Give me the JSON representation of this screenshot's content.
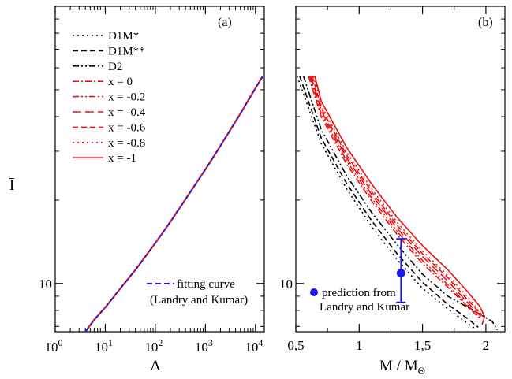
{
  "colors": {
    "black": "#000000",
    "red": "#ee1111",
    "blue": "#1a1aee"
  },
  "chart_data": [
    {
      "type": "line",
      "panel_label": "(a)",
      "xlabel": "Λ",
      "ylabel": "Ī",
      "x_scale": "log",
      "y_scale": "log",
      "xlim": [
        1,
        15000
      ],
      "ylim": [
        6.7,
        100
      ],
      "x_ticks": [
        {
          "value": 1,
          "base": "10",
          "exp": "0"
        },
        {
          "value": 10,
          "base": "10",
          "exp": "1"
        },
        {
          "value": 100,
          "base": "10",
          "exp": "2"
        },
        {
          "value": 1000,
          "base": "10",
          "exp": "3"
        },
        {
          "value": 10000,
          "base": "10",
          "exp": "4"
        }
      ],
      "y_ticks": [
        {
          "value": 10,
          "label": "10"
        }
      ],
      "legend": [
        {
          "label": "D1M*",
          "style": "dotted",
          "color": "#000000"
        },
        {
          "label": "D1M**",
          "style": "dashed",
          "color": "#000000"
        },
        {
          "label": "D2",
          "style": "dashdotdot",
          "color": "#000000"
        },
        {
          "label": "x = 0",
          "style": "dashdot",
          "color": "#ee1111"
        },
        {
          "label": "x = -0.2",
          "style": "dashdotdot",
          "color": "#ee1111"
        },
        {
          "label": "x = -0.4",
          "style": "longdash",
          "color": "#ee1111"
        },
        {
          "label": "x = -0.6",
          "style": "dashed",
          "color": "#ee1111"
        },
        {
          "label": "x = -0.8",
          "style": "dotted",
          "color": "#ee1111"
        },
        {
          "label": "x = -1",
          "style": "solid",
          "color": "#ee1111"
        }
      ],
      "fit_legend": {
        "line1": "fitting curve",
        "line2": "(Landry and Kumar)",
        "color": "#1a1aee"
      },
      "fit_curve": {
        "x": [
          4,
          6,
          10,
          20,
          40,
          100,
          200,
          500,
          1000,
          2000,
          5000,
          10000,
          14000
        ],
        "y": [
          6.7,
          7.4,
          8.2,
          9.6,
          11.2,
          14.0,
          16.7,
          21.4,
          25.8,
          31.4,
          41.0,
          50.7,
          56.0
        ]
      }
    },
    {
      "type": "line",
      "panel_label": "(b)",
      "xlabel": "M / M",
      "xlabel_sub": "Θ",
      "ylabel": "",
      "y_scale": "log",
      "xlim": [
        0.5,
        2.15
      ],
      "ylim": [
        6.7,
        100
      ],
      "x_ticks": [
        {
          "value": 0.5,
          "label": "0,5"
        },
        {
          "value": 1.0,
          "label": "1"
        },
        {
          "value": 1.5,
          "label": "1,5"
        },
        {
          "value": 2.0,
          "label": "2"
        }
      ],
      "y_ticks": [
        {
          "value": 10,
          "label": "10"
        }
      ],
      "series": [
        {
          "style": "dotted",
          "color": "#000000",
          "x": [
            0.51,
            0.7,
            0.9,
            1.1,
            1.3,
            1.5,
            1.7,
            1.85,
            1.91
          ],
          "y": [
            56.0,
            32.0,
            22.0,
            16.0,
            12.2,
            9.6,
            8.1,
            7.2,
            6.9
          ]
        },
        {
          "style": "dashed",
          "color": "#000000",
          "x": [
            0.53,
            0.7,
            0.9,
            1.1,
            1.3,
            1.5,
            1.7,
            1.85,
            1.94
          ],
          "y": [
            56.0,
            33.5,
            23.0,
            16.8,
            12.8,
            10.1,
            8.4,
            7.5,
            6.95
          ]
        },
        {
          "style": "dashdotdot",
          "color": "#000000",
          "x": [
            0.56,
            0.7,
            0.9,
            1.1,
            1.3,
            1.5,
            1.7,
            1.9,
            2.05,
            2.09
          ],
          "y": [
            56.0,
            36.0,
            24.5,
            18.0,
            13.8,
            10.8,
            9.0,
            8.0,
            7.3,
            6.8
          ]
        },
        {
          "style": "dashdot",
          "color": "#ee1111",
          "x": [
            0.6,
            0.7,
            0.9,
            1.1,
            1.3,
            1.5,
            1.7,
            1.85,
            1.95
          ],
          "y": [
            56.0,
            40.0,
            27.0,
            19.8,
            15.0,
            11.8,
            9.7,
            8.3,
            7.5
          ]
        },
        {
          "style": "dashdotdot",
          "color": "#ee1111",
          "x": [
            0.61,
            0.7,
            0.9,
            1.1,
            1.3,
            1.5,
            1.7,
            1.85,
            1.95
          ],
          "y": [
            56.0,
            41.0,
            27.7,
            20.3,
            15.4,
            12.1,
            9.9,
            8.4,
            7.55
          ]
        },
        {
          "style": "longdash",
          "color": "#ee1111",
          "x": [
            0.62,
            0.7,
            0.9,
            1.1,
            1.3,
            1.5,
            1.7,
            1.85,
            1.96
          ],
          "y": [
            56.0,
            42.0,
            28.4,
            20.9,
            15.8,
            12.5,
            10.2,
            8.6,
            7.6
          ]
        },
        {
          "style": "dashed",
          "color": "#ee1111",
          "x": [
            0.63,
            0.7,
            0.9,
            1.1,
            1.3,
            1.5,
            1.7,
            1.85,
            1.97
          ],
          "y": [
            56.0,
            43.0,
            29.1,
            21.4,
            16.2,
            12.8,
            10.5,
            8.8,
            7.65
          ]
        },
        {
          "style": "dotted",
          "color": "#ee1111",
          "x": [
            0.64,
            0.7,
            0.9,
            1.1,
            1.3,
            1.5,
            1.7,
            1.85,
            1.97
          ],
          "y": [
            56.0,
            44.0,
            29.8,
            21.9,
            16.6,
            13.1,
            10.7,
            9.0,
            7.7
          ]
        },
        {
          "style": "solid",
          "color": "#ee1111",
          "x": [
            0.65,
            0.7,
            0.9,
            1.1,
            1.3,
            1.5,
            1.7,
            1.85,
            1.95,
            1.99,
            1.97
          ],
          "y": [
            56.0,
            45.5,
            31.0,
            22.8,
            17.3,
            13.7,
            11.2,
            9.4,
            8.3,
            7.6,
            7.1
          ]
        }
      ],
      "prediction": {
        "x": 1.33,
        "y": 10.9,
        "y_low": 8.55,
        "y_high": 14.5,
        "color": "#1a1aee"
      },
      "prediction_legend": {
        "line1": "prediction from",
        "line2": "Landry and Kumar"
      }
    }
  ]
}
